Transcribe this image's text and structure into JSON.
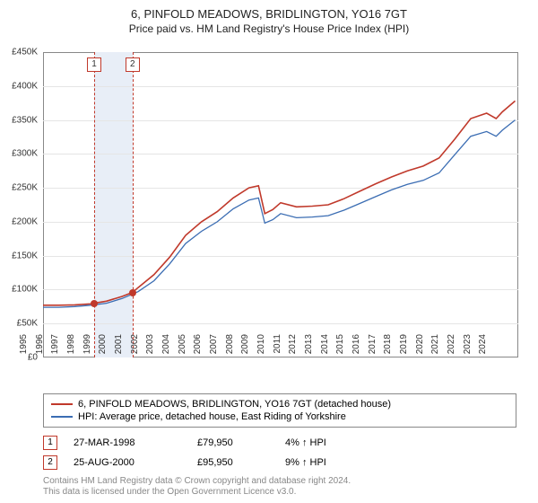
{
  "header": {
    "title": "6, PINFOLD MEADOWS, BRIDLINGTON, YO16 7GT",
    "subtitle": "Price paid vs. HM Land Registry's House Price Index (HPI)"
  },
  "chart": {
    "type": "line",
    "background_color": "#ffffff",
    "grid_color": "#e5e5e5",
    "border_color": "#888888",
    "ylim": [
      0,
      450000
    ],
    "ytick_step": 50000,
    "yticks": [
      "£0",
      "£50K",
      "£100K",
      "£150K",
      "£200K",
      "£250K",
      "£300K",
      "£350K",
      "£400K",
      "£450K"
    ],
    "xlim": [
      1995,
      2025
    ],
    "xticks": [
      1995,
      1996,
      1997,
      1998,
      1999,
      2000,
      2001,
      2002,
      2003,
      2004,
      2005,
      2006,
      2007,
      2008,
      2009,
      2010,
      2011,
      2012,
      2013,
      2014,
      2015,
      2016,
      2017,
      2018,
      2019,
      2020,
      2021,
      2022,
      2023,
      2024
    ],
    "band": {
      "from": 1998.23,
      "to": 2000.65,
      "color": "#e8eef7"
    },
    "vlines": [
      {
        "x": 1998.23,
        "color": "#c0392b"
      },
      {
        "x": 2000.65,
        "color": "#c0392b"
      }
    ],
    "marker_labels": [
      {
        "n": "1",
        "x": 1998.23
      },
      {
        "n": "2",
        "x": 2000.65
      }
    ],
    "series": [
      {
        "name": "price_paid",
        "color": "#c0392b",
        "width": 1.6,
        "points": [
          [
            1995,
            77000
          ],
          [
            1996,
            77000
          ],
          [
            1997,
            77500
          ],
          [
            1998,
            79000
          ],
          [
            1998.23,
            79950
          ],
          [
            1999,
            83000
          ],
          [
            2000,
            90000
          ],
          [
            2000.65,
            95950
          ],
          [
            2001,
            103000
          ],
          [
            2002,
            122000
          ],
          [
            2003,
            148000
          ],
          [
            2004,
            180000
          ],
          [
            2005,
            200000
          ],
          [
            2006,
            215000
          ],
          [
            2007,
            235000
          ],
          [
            2008,
            250000
          ],
          [
            2008.6,
            253000
          ],
          [
            2009,
            212000
          ],
          [
            2009.5,
            218000
          ],
          [
            2010,
            228000
          ],
          [
            2011,
            222000
          ],
          [
            2012,
            223000
          ],
          [
            2013,
            225000
          ],
          [
            2014,
            234000
          ],
          [
            2015,
            245000
          ],
          [
            2016,
            256000
          ],
          [
            2017,
            266000
          ],
          [
            2018,
            275000
          ],
          [
            2019,
            282000
          ],
          [
            2020,
            294000
          ],
          [
            2021,
            322000
          ],
          [
            2022,
            352000
          ],
          [
            2023,
            360000
          ],
          [
            2023.6,
            352000
          ],
          [
            2024,
            362000
          ],
          [
            2024.8,
            378000
          ]
        ]
      },
      {
        "name": "hpi",
        "color": "#3b6db3",
        "width": 1.3,
        "points": [
          [
            1995,
            74000
          ],
          [
            1996,
            74000
          ],
          [
            1997,
            75000
          ],
          [
            1998,
            77000
          ],
          [
            1999,
            80000
          ],
          [
            2000,
            87000
          ],
          [
            2001,
            97000
          ],
          [
            2002,
            113000
          ],
          [
            2003,
            138000
          ],
          [
            2004,
            168000
          ],
          [
            2005,
            186000
          ],
          [
            2006,
            200000
          ],
          [
            2007,
            219000
          ],
          [
            2008,
            232000
          ],
          [
            2008.6,
            235000
          ],
          [
            2009,
            198000
          ],
          [
            2009.5,
            203000
          ],
          [
            2010,
            212000
          ],
          [
            2011,
            206000
          ],
          [
            2012,
            207000
          ],
          [
            2013,
            209000
          ],
          [
            2014,
            217000
          ],
          [
            2015,
            227000
          ],
          [
            2016,
            237000
          ],
          [
            2017,
            247000
          ],
          [
            2018,
            255000
          ],
          [
            2019,
            261000
          ],
          [
            2020,
            272000
          ],
          [
            2021,
            299000
          ],
          [
            2022,
            326000
          ],
          [
            2023,
            333000
          ],
          [
            2023.6,
            326000
          ],
          [
            2024,
            335000
          ],
          [
            2024.8,
            350000
          ]
        ]
      }
    ],
    "sale_points": [
      {
        "x": 1998.23,
        "y": 79950,
        "color": "#c0392b"
      },
      {
        "x": 2000.65,
        "y": 95950,
        "color": "#c0392b"
      }
    ]
  },
  "legend": {
    "items": [
      {
        "color": "#c0392b",
        "label": "6, PINFOLD MEADOWS, BRIDLINGTON, YO16 7GT (detached house)"
      },
      {
        "color": "#3b6db3",
        "label": "HPI: Average price, detached house, East Riding of Yorkshire"
      }
    ]
  },
  "sales": [
    {
      "n": "1",
      "date": "27-MAR-1998",
      "price": "£79,950",
      "pct": "4% ↑ HPI"
    },
    {
      "n": "2",
      "date": "25-AUG-2000",
      "price": "£95,950",
      "pct": "9% ↑ HPI"
    }
  ],
  "attribution": {
    "line1": "Contains HM Land Registry data © Crown copyright and database right 2024.",
    "line2": "This data is licensed under the Open Government Licence v3.0."
  }
}
